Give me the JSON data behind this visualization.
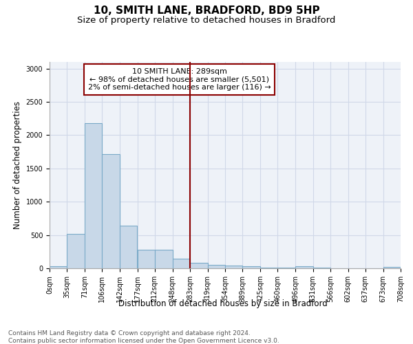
{
  "title_line1": "10, SMITH LANE, BRADFORD, BD9 5HP",
  "title_line2": "Size of property relative to detached houses in Bradford",
  "xlabel": "Distribution of detached houses by size in Bradford",
  "ylabel": "Number of detached properties",
  "bin_edges": [
    0,
    35,
    71,
    106,
    142,
    177,
    212,
    248,
    283,
    319,
    354,
    389,
    425,
    460,
    496,
    531,
    566,
    602,
    637,
    673,
    708
  ],
  "bar_heights": [
    30,
    520,
    2180,
    1720,
    640,
    280,
    280,
    140,
    80,
    55,
    45,
    30,
    15,
    10,
    35,
    8,
    5,
    5,
    5,
    20
  ],
  "bar_color": "#c8d8e8",
  "bar_edgecolor": "#7aaac8",
  "bar_linewidth": 0.8,
  "vline_x": 283,
  "vline_color": "#8b0000",
  "vline_linewidth": 1.5,
  "annotation_text": "10 SMITH LANE: 289sqm\n← 98% of detached houses are smaller (5,501)\n2% of semi-detached houses are larger (116) →",
  "annotation_box_edgecolor": "#8b0000",
  "annotation_box_facecolor": "white",
  "ylim": [
    0,
    3100
  ],
  "yticks": [
    0,
    500,
    1000,
    1500,
    2000,
    2500,
    3000
  ],
  "grid_color": "#d0d8e8",
  "bg_color": "#eef2f8",
  "footer_text": "Contains HM Land Registry data © Crown copyright and database right 2024.\nContains public sector information licensed under the Open Government Licence v3.0.",
  "title_fontsize": 11,
  "subtitle_fontsize": 9.5,
  "axis_label_fontsize": 8.5,
  "tick_fontsize": 7,
  "annotation_fontsize": 8,
  "footer_fontsize": 6.5
}
